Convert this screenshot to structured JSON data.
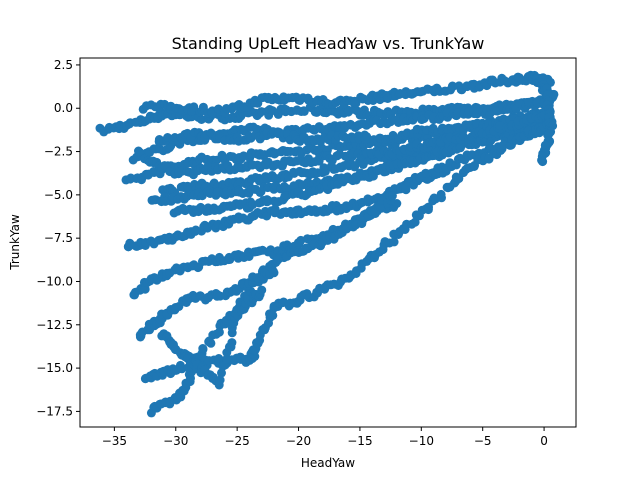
{
  "chart_data": {
    "type": "scatter",
    "title": "Standing UpLeft HeadYaw vs. TrunkYaw",
    "xlabel": "HeadYaw",
    "ylabel": "TrunkYaw",
    "xlim": [
      -37.8,
      2.6
    ],
    "ylim": [
      -18.4,
      2.9
    ],
    "xticks": [
      -35,
      -30,
      -25,
      -20,
      -15,
      -10,
      -5,
      0
    ],
    "yticks": [
      2.5,
      0.0,
      -2.5,
      -5.0,
      -7.5,
      -10.0,
      -12.5,
      -15.0,
      -17.5
    ],
    "xtick_labels": [
      "−35",
      "−30",
      "−25",
      "−20",
      "−15",
      "−10",
      "−5",
      "0"
    ],
    "ytick_labels": [
      "2.5",
      "0.0",
      "−2.5",
      "−5.0",
      "−7.5",
      "−10.0",
      "−12.5",
      "−15.0",
      "−17.5"
    ],
    "marker_color": "#1f77b4",
    "grid": false,
    "series": [
      {
        "segments": [
          [
            [
              -36,
              -1.3
            ],
            [
              -33,
              -0.8
            ],
            [
              -31,
              -0.3
            ],
            [
              -28,
              -0.5
            ],
            [
              -25,
              -0.5
            ],
            [
              -22,
              -0.2
            ],
            [
              -19,
              -0.1
            ],
            [
              -16,
              -0.2
            ],
            [
              -13,
              -0.3
            ],
            [
              -10,
              -0.2
            ],
            [
              -7,
              -0.1
            ],
            [
              -4,
              0.0
            ],
            [
              -2,
              0.2
            ],
            [
              0,
              0.5
            ],
            [
              0.8,
              0.8
            ]
          ],
          [
            [
              -32.5,
              0.1
            ],
            [
              -29,
              0.0
            ],
            [
              -26,
              -0.2
            ],
            [
              -23,
              0.5
            ],
            [
              -20,
              0.6
            ],
            [
              -17,
              0.3
            ],
            [
              -14,
              0.6
            ],
            [
              -12,
              0.8
            ],
            [
              -9,
              1.0
            ],
            [
              -6,
              1.3
            ],
            [
              -3,
              1.6
            ],
            [
              -1,
              1.8
            ],
            [
              0.5,
              1.5
            ]
          ],
          [
            [
              -34,
              -4.3
            ],
            [
              -31,
              -3.5
            ],
            [
              -28,
              -3.0
            ],
            [
              -25,
              -2.8
            ],
            [
              -22,
              -2.6
            ],
            [
              -19,
              -2.4
            ],
            [
              -16,
              -2.2
            ],
            [
              -13,
              -2.0
            ],
            [
              -10,
              -1.6
            ],
            [
              -7,
              -1.2
            ],
            [
              -4,
              -0.8
            ],
            [
              -1,
              -0.5
            ],
            [
              0.5,
              -0.2
            ]
          ],
          [
            [
              -33.5,
              -3.0
            ],
            [
              -30,
              -2.0
            ],
            [
              -27,
              -1.6
            ],
            [
              -24,
              -1.2
            ],
            [
              -21,
              -1.4
            ],
            [
              -18,
              -1.2
            ],
            [
              -15,
              -0.9
            ],
            [
              -12,
              -0.7
            ],
            [
              -9,
              -0.5
            ],
            [
              -6,
              -0.3
            ],
            [
              -3,
              0.0
            ],
            [
              0,
              0.3
            ]
          ],
          [
            [
              -31,
              -4.8
            ],
            [
              -28,
              -4.5
            ],
            [
              -25,
              -4.3
            ],
            [
              -22,
              -4.0
            ],
            [
              -19,
              -3.7
            ],
            [
              -16,
              -3.3
            ],
            [
              -13,
              -2.9
            ],
            [
              -10,
              -2.5
            ],
            [
              -7,
              -2.0
            ],
            [
              -4,
              -1.5
            ],
            [
              -1,
              -0.9
            ],
            [
              0.5,
              -0.5
            ]
          ],
          [
            [
              -32,
              -5.3
            ],
            [
              -29,
              -5.1
            ],
            [
              -26,
              -4.9
            ],
            [
              -23,
              -4.7
            ],
            [
              -20,
              -4.5
            ],
            [
              -17,
              -4.2
            ],
            [
              -14,
              -3.7
            ],
            [
              -11,
              -3.1
            ],
            [
              -8,
              -2.5
            ],
            [
              -5,
              -1.8
            ],
            [
              -2,
              -1.2
            ],
            [
              0.5,
              -0.6
            ]
          ],
          [
            [
              -31.5,
              -1.8
            ],
            [
              -28,
              -1.5
            ],
            [
              -25,
              -1.8
            ],
            [
              -22,
              -1.5
            ],
            [
              -19,
              -1.9
            ],
            [
              -16,
              -1.6
            ],
            [
              -13,
              -1.8
            ],
            [
              -10,
              -1.3
            ],
            [
              -7,
              -1.2
            ],
            [
              -4,
              -0.9
            ],
            [
              -1,
              -0.6
            ]
          ],
          [
            [
              -30,
              -6.0
            ],
            [
              -27,
              -5.8
            ],
            [
              -24,
              -5.6
            ],
            [
              -21,
              -5.2
            ],
            [
              -18,
              -4.6
            ],
            [
              -15,
              -4.0
            ],
            [
              -12,
              -3.3
            ],
            [
              -9,
              -2.6
            ],
            [
              -6,
              -2.0
            ],
            [
              -3,
              -1.5
            ],
            [
              0,
              -1.0
            ]
          ],
          [
            [
              -34,
              -8.0
            ],
            [
              -31,
              -7.6
            ],
            [
              -28,
              -7.0
            ],
            [
              -25,
              -6.4
            ],
            [
              -22,
              -6.0
            ],
            [
              -19,
              -5.9
            ],
            [
              -16,
              -5.7
            ],
            [
              -13,
              -5.0
            ],
            [
              -10,
              -4.0
            ],
            [
              -8,
              -3.5
            ]
          ],
          [
            [
              -33.5,
              -10.7
            ],
            [
              -31,
              -9.6
            ],
            [
              -28,
              -9.0
            ],
            [
              -25,
              -8.5
            ],
            [
              -22,
              -8.3
            ],
            [
              -19,
              -7.6
            ],
            [
              -16,
              -6.8
            ],
            [
              -14,
              -6.0
            ],
            [
              -12,
              -5.5
            ]
          ],
          [
            [
              -32,
              -17.5
            ],
            [
              -29.5,
              -16.5
            ],
            [
              -28,
              -14.0
            ],
            [
              -25.5,
              -12.0
            ],
            [
              -23,
              -9.5
            ],
            [
              -21,
              -8.5
            ],
            [
              -18,
              -7.8
            ],
            [
              -15,
              -6.5
            ],
            [
              -12,
              -4.8
            ],
            [
              -9,
              -3.7
            ],
            [
              -6,
              -2.8
            ],
            [
              -3,
              -2.0
            ],
            [
              0,
              -1.2
            ]
          ],
          [
            [
              -33,
              -13.2
            ],
            [
              -31,
              -12.0
            ],
            [
              -29,
              -11.0
            ],
            [
              -26,
              -10.8
            ],
            [
              -24,
              -10.0
            ],
            [
              -22,
              -9.5
            ]
          ],
          [
            [
              -32.5,
              -15.7
            ],
            [
              -30,
              -15.0
            ],
            [
              -27,
              -14.6
            ],
            [
              -24,
              -14.5
            ],
            [
              -23.5,
              -14.0
            ],
            [
              -22,
              -11.5
            ],
            [
              -19,
              -10.8
            ],
            [
              -16,
              -9.8
            ],
            [
              -13,
              -8.0
            ],
            [
              -10,
              -6.0
            ],
            [
              -7,
              -4.0
            ],
            [
              -4,
              -2.5
            ],
            [
              -1,
              -1.4
            ],
            [
              0.5,
              -0.8
            ]
          ],
          [
            [
              -31,
              -13.0
            ],
            [
              -29.5,
              -14.2
            ],
            [
              -28,
              -15.0
            ],
            [
              -26.5,
              -15.9
            ],
            [
              -25,
              -12.0
            ],
            [
              -23,
              -10.5
            ]
          ],
          [
            [
              -33,
              -2.6
            ],
            [
              -30,
              -3.8
            ],
            [
              -27,
              -3.5
            ],
            [
              -24,
              -3.3
            ],
            [
              -21,
              -3.2
            ],
            [
              -18,
              -2.9
            ],
            [
              -15,
              -2.7
            ],
            [
              -12,
              -2.5
            ],
            [
              -9,
              -2.0
            ],
            [
              -6,
              -1.6
            ],
            [
              -3,
              -1.1
            ],
            [
              0,
              -0.4
            ]
          ],
          [
            [
              -0.8,
              1.9
            ],
            [
              0.2,
              1.0
            ],
            [
              0.6,
              -0.8
            ],
            [
              0.3,
              -2.0
            ],
            [
              -0.2,
              -3.0
            ]
          ]
        ]
      }
    ]
  }
}
